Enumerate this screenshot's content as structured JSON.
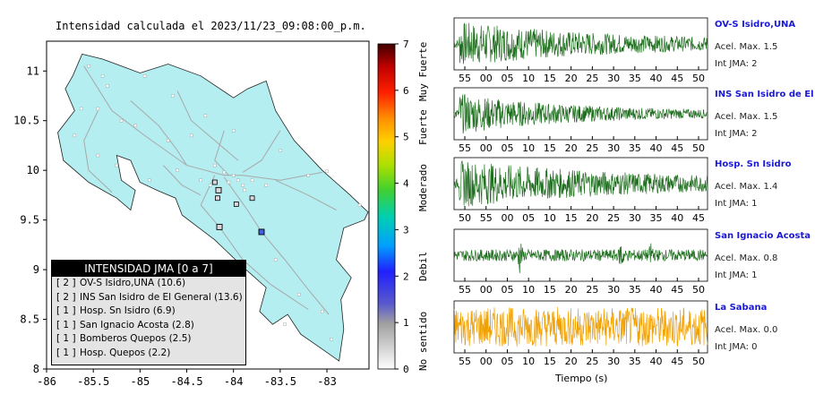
{
  "map": {
    "title": "Intensidad calculada el 2023/11/23_09:08:00_p.m.",
    "x_ticks": [
      "-86",
      "-85.5",
      "-85",
      "-84.5",
      "-84",
      "-83.5",
      "-83"
    ],
    "y_ticks": [
      "8",
      "8.5",
      "9",
      "9.5",
      "10",
      "10.5",
      "11"
    ],
    "colors": {
      "land": "#b4eef0",
      "roads": "#a8a8a8",
      "ocean": "#ffffff"
    }
  },
  "legend": {
    "title": "INTENSIDAD JMA [0 a 7]",
    "items": [
      {
        "level": "[ 2 ]",
        "label": "OV-S Isidro,UNA (10.6)"
      },
      {
        "level": "[ 2 ]",
        "label": "INS San Isidro de El General (13.6)"
      },
      {
        "level": "[ 1 ]",
        "label": "Hosp. Sn Isidro (6.9)"
      },
      {
        "level": "[ 1 ]",
        "label": "San Ignacio Acosta (2.8)"
      },
      {
        "level": "[ 1 ]",
        "label": "Bomberos Quepos (2.5)"
      },
      {
        "level": "[ 1 ]",
        "label": "Hosp. Quepos (2.2)"
      }
    ]
  },
  "scale": {
    "ticks": [
      "0",
      "1",
      "2",
      "3",
      "4",
      "5",
      "6",
      "7"
    ],
    "categories": [
      "No sentido",
      "Debil",
      "Moderado",
      "Fuerte",
      "Muy Fuerte"
    ]
  },
  "chart_data": [
    {
      "type": "scatter",
      "title": "Intensidad calculada el 2023/11/23_09:08:00_p.m.",
      "xlim": [
        -86,
        -82.55
      ],
      "ylim": [
        8,
        11.3
      ],
      "stations": [
        {
          "name": "OV-S Isidro,UNA",
          "lon": -83.7,
          "lat": 9.38,
          "intensity": 2
        },
        {
          "name": "INS San Isidro de El General",
          "lon": -83.7,
          "lat": 9.38,
          "intensity": 2
        },
        {
          "name": "Hosp. Sn Isidro",
          "lon": -83.7,
          "lat": 9.38,
          "intensity": 1
        },
        {
          "name": "San Ignacio Acosta",
          "lon": -84.16,
          "lat": 9.8,
          "intensity": 1
        },
        {
          "name": "Bomberos Quepos",
          "lon": -84.15,
          "lat": 9.43,
          "intensity": 1
        },
        {
          "name": "Hosp. Quepos",
          "lon": -84.15,
          "lat": 9.43,
          "intensity": 1
        }
      ],
      "colorbar": {
        "min": 0,
        "max": 7,
        "label_ranges": [
          [
            "No sentido",
            0,
            1.2
          ],
          [
            "Debil",
            1.2,
            3.2
          ],
          [
            "Moderado",
            3.2,
            4.6
          ],
          [
            "Fuerte",
            4.6,
            5.8
          ],
          [
            "Muy Fuerte",
            5.8,
            7
          ]
        ]
      }
    },
    {
      "type": "line",
      "xlabel": "Tiempo (s)",
      "traces": [
        {
          "name": "OV-S Isidro,UNA",
          "acel": "Acel. Max. 1.5",
          "jma": "Int JMA: 2",
          "color": "#1e6e1e",
          "amp": 0.95,
          "decay": 0.05,
          "spikes": [],
          "ticks": [
            "55",
            "00",
            "05",
            "10",
            "15",
            "20",
            "25",
            "30",
            "35",
            "40",
            "45",
            "50"
          ]
        },
        {
          "name": "INS San Isidro de El Ge",
          "acel": "Acel. Max. 1.5",
          "jma": "Int JMA: 2",
          "color": "#1e6e1e",
          "amp": 0.85,
          "decay": 0.03,
          "spikes": [],
          "ticks": [
            "55",
            "00",
            "05",
            "10",
            "15",
            "20",
            "25",
            "30",
            "35",
            "40",
            "45",
            "50"
          ]
        },
        {
          "name": "Hosp. Sn Isidro",
          "acel": "Acel. Max. 1.4",
          "jma": "Int JMA: 1",
          "color": "#1e6e1e",
          "amp": 1.0,
          "decay": 0.06,
          "spikes": [],
          "ticks": [
            "50",
            "55",
            "00",
            "05",
            "10",
            "15",
            "20",
            "25",
            "30",
            "35",
            "40",
            "45"
          ]
        },
        {
          "name": "San Ignacio Acosta",
          "acel": "Acel. Max. 0.8",
          "jma": "Int JMA: 1",
          "color": "#1e6e1e",
          "amp": 0.25,
          "decay": 0.0,
          "spikes": [
            0.26,
            0.66,
            0.78
          ],
          "ticks": [
            "55",
            "00",
            "05",
            "10",
            "15",
            "20",
            "25",
            "30",
            "35",
            "40",
            "45",
            "50"
          ]
        },
        {
          "name": "La Sabana",
          "acel": "Acel. Max. 0.0",
          "jma": "Int JMA: 0",
          "color": "#f0a000",
          "amp": 0.85,
          "decay": 0.0,
          "spikes": [],
          "ticks": [
            "55",
            "00",
            "05",
            "10",
            "15",
            "20",
            "25",
            "30",
            "35",
            "40",
            "45",
            "50"
          ]
        }
      ]
    }
  ]
}
